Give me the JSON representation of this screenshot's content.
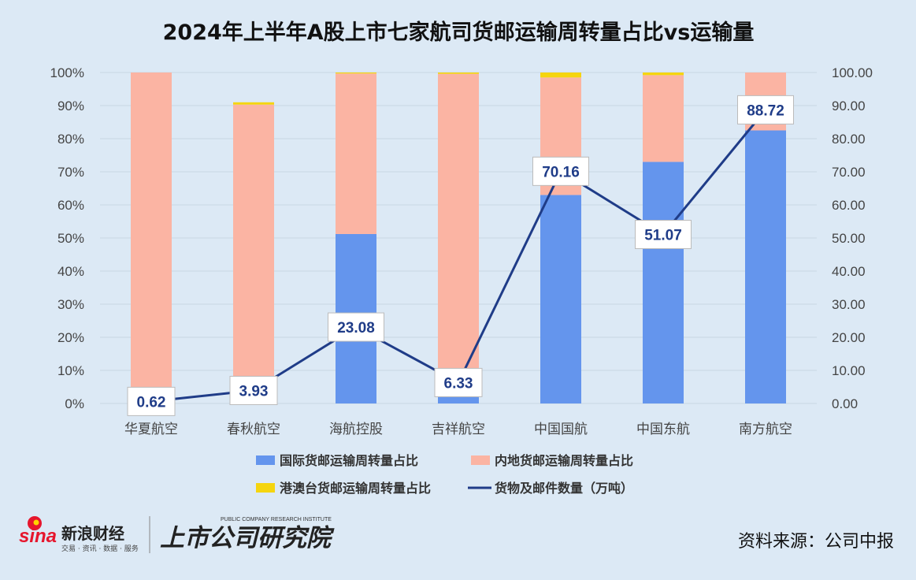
{
  "chart_data": {
    "type": "bar",
    "subtype": "stacked-100-percent-with-line",
    "title": "2024年上半年A股上市七家航司货邮运输周转量占比vs运输量",
    "categories": [
      "华夏航空",
      "春秋航空",
      "海航控股",
      "吉祥航空",
      "中国国航",
      "中国东航",
      "南方航空"
    ],
    "series": [
      {
        "name": "国际货邮运输周转量占比",
        "type": "bar",
        "axis": "left",
        "color": "#6495ed",
        "values": [
          0.5,
          1.0,
          51.2,
          2.0,
          63.0,
          73.0,
          82.5
        ]
      },
      {
        "name": "内地货邮运输周转量占比",
        "type": "bar",
        "axis": "left",
        "color": "#fbb4a3",
        "values": [
          99.5,
          89.3,
          48.5,
          97.6,
          35.5,
          26.2,
          17.5
        ]
      },
      {
        "name": "港澳台货邮运输周转量占比",
        "type": "bar",
        "axis": "left",
        "color": "#f5d50f",
        "values": [
          0.0,
          0.7,
          0.3,
          0.4,
          1.5,
          0.8,
          0.0
        ]
      },
      {
        "name": "货物及邮件数量（万吨）",
        "type": "line",
        "axis": "right",
        "color": "#1f3c88",
        "values": [
          0.62,
          3.93,
          23.08,
          6.33,
          70.16,
          51.07,
          88.72
        ],
        "labels": [
          "0.62",
          "3.93",
          "23.08",
          "6.33",
          "70.16",
          "51.07",
          "88.72"
        ]
      }
    ],
    "y_left": {
      "range": [
        0,
        100
      ],
      "ticks": [
        "0%",
        "10%",
        "20%",
        "30%",
        "40%",
        "50%",
        "60%",
        "70%",
        "80%",
        "90%",
        "100%"
      ]
    },
    "y_right": {
      "range": [
        0,
        100
      ],
      "ticks": [
        "0.00",
        "10.00",
        "20.00",
        "30.00",
        "40.00",
        "50.00",
        "60.00",
        "70.00",
        "80.00",
        "90.00",
        "100.00"
      ]
    },
    "grid": true,
    "legend_position": "bottom"
  },
  "footer": {
    "brand_sina_logo": "sina",
    "brand_sina_name": "新浪财经",
    "brand_sina_tagline": "交易 · 资讯 · 数据 · 服务",
    "brand_research_name": "上市公司研究院",
    "brand_research_en": "PUBLIC COMPANY RESEARCH INSTITUTE",
    "source": "资料来源：公司中报"
  },
  "colors": {
    "background": "#dce9f5",
    "gridline": "#c9d6e3",
    "sina_red": "#e6162d"
  }
}
